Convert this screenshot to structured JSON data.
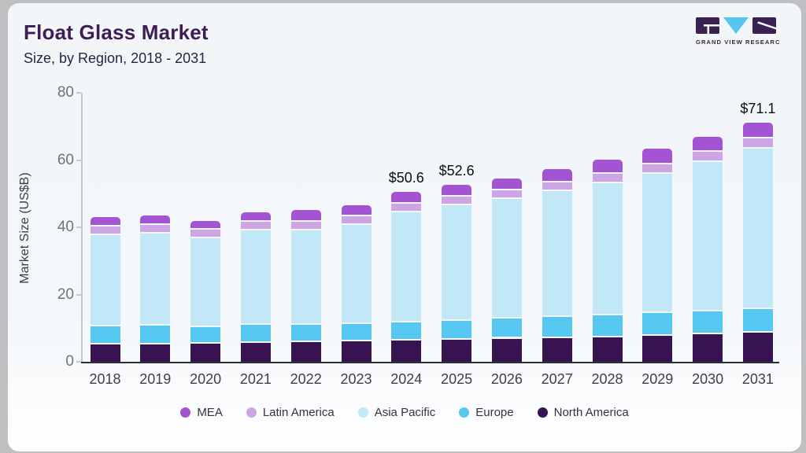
{
  "header": {
    "title": "Float Glass Market",
    "subtitle": "Size, by Region, 2018 - 2031"
  },
  "logo": {
    "text": "GRAND VIEW RESEARCH",
    "mark_dark": "#3b2052",
    "mark_cyan": "#57c5ee"
  },
  "chart_data": {
    "type": "bar",
    "stacked": true,
    "title": "Float Glass Market Size, by Region, 2018 - 2031",
    "ylabel": "Market Size (US$B)",
    "ylim": [
      0,
      80
    ],
    "yticks": [
      0,
      20,
      40,
      60,
      80
    ],
    "grid": false,
    "legend_position": "bottom",
    "categories": [
      "2018",
      "2019",
      "2020",
      "2021",
      "2022",
      "2023",
      "2024",
      "2025",
      "2026",
      "2027",
      "2028",
      "2029",
      "2030",
      "2031"
    ],
    "series": [
      {
        "name": "North America",
        "color": "#371352",
        "values": [
          5.1,
          5.2,
          5.3,
          5.6,
          5.8,
          6.1,
          6.3,
          6.6,
          6.9,
          7.1,
          7.3,
          7.7,
          8.3,
          8.7
        ]
      },
      {
        "name": "Europe",
        "color": "#56c7f0",
        "values": [
          5.5,
          5.5,
          5.1,
          5.3,
          5.1,
          5.2,
          5.5,
          5.6,
          5.9,
          6.3,
          6.6,
          6.7,
          6.7,
          7.0
        ]
      },
      {
        "name": "Asia Pacific",
        "color": "#c2e7f7",
        "values": [
          27.1,
          27.4,
          26.3,
          28.1,
          28.2,
          29.3,
          32.6,
          34.3,
          35.7,
          37.4,
          39.3,
          41.6,
          44.3,
          47.6
        ]
      },
      {
        "name": "Latin America",
        "color": "#cda4e4",
        "values": [
          2.5,
          2.6,
          2.5,
          2.6,
          2.6,
          2.6,
          2.6,
          2.6,
          2.6,
          2.6,
          2.8,
          2.7,
          3.2,
          3.1
        ]
      },
      {
        "name": "MEA",
        "color": "#a254d2",
        "values": [
          2.8,
          2.8,
          2.6,
          2.8,
          3.4,
          3.3,
          3.6,
          3.5,
          3.4,
          4.0,
          4.2,
          4.6,
          4.3,
          4.7
        ]
      }
    ],
    "totals": [
      43.0,
      43.5,
      41.8,
      44.4,
      45.1,
      46.5,
      50.6,
      52.6,
      54.5,
      57.4,
      60.2,
      63.3,
      66.8,
      71.1
    ],
    "annotations": {
      "2024": "$50.6",
      "2025": "$52.6",
      "2031": "$71.1"
    },
    "legend_order": [
      "MEA",
      "Latin America",
      "Asia Pacific",
      "Europe",
      "North America"
    ]
  }
}
